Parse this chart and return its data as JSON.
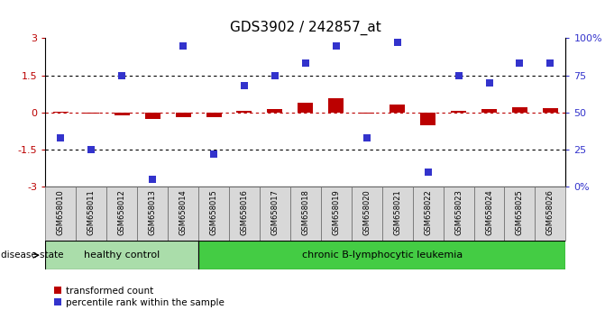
{
  "title": "GDS3902 / 242857_at",
  "samples": [
    "GSM658010",
    "GSM658011",
    "GSM658012",
    "GSM658013",
    "GSM658014",
    "GSM658015",
    "GSM658016",
    "GSM658017",
    "GSM658018",
    "GSM658019",
    "GSM658020",
    "GSM658021",
    "GSM658022",
    "GSM658023",
    "GSM658024",
    "GSM658025",
    "GSM658026"
  ],
  "red_values": [
    0.02,
    -0.05,
    -0.12,
    -0.28,
    -0.18,
    -0.18,
    0.08,
    0.15,
    0.38,
    0.58,
    -0.05,
    0.32,
    -0.5,
    0.06,
    0.12,
    0.22,
    0.18
  ],
  "blue_percentiles": [
    33,
    25,
    75,
    5,
    95,
    22,
    68,
    75,
    83,
    95,
    33,
    97,
    10,
    75,
    70,
    83,
    83
  ],
  "ylim_left": [
    -3,
    3
  ],
  "ylim_right": [
    0,
    100
  ],
  "yticks_left": [
    -3,
    -1.5,
    0,
    1.5,
    3
  ],
  "yticks_right": [
    0,
    25,
    50,
    75,
    100
  ],
  "healthy_count": 5,
  "disease_label": "chronic B-lymphocytic leukemia",
  "healthy_label": "healthy control",
  "disease_state_label": "disease state",
  "legend_red": "transformed count",
  "legend_blue": "percentile rank within the sample",
  "red_color": "#bb0000",
  "blue_color": "#3333cc",
  "healthy_facecolor": "#aaddaa",
  "disease_facecolor": "#44cc44",
  "label_box_color": "#dddddd",
  "bar_width": 0.5,
  "blue_marker_size": 36,
  "title_fontsize": 11,
  "tick_fontsize": 8,
  "label_fontsize": 6,
  "disease_fontsize": 8
}
